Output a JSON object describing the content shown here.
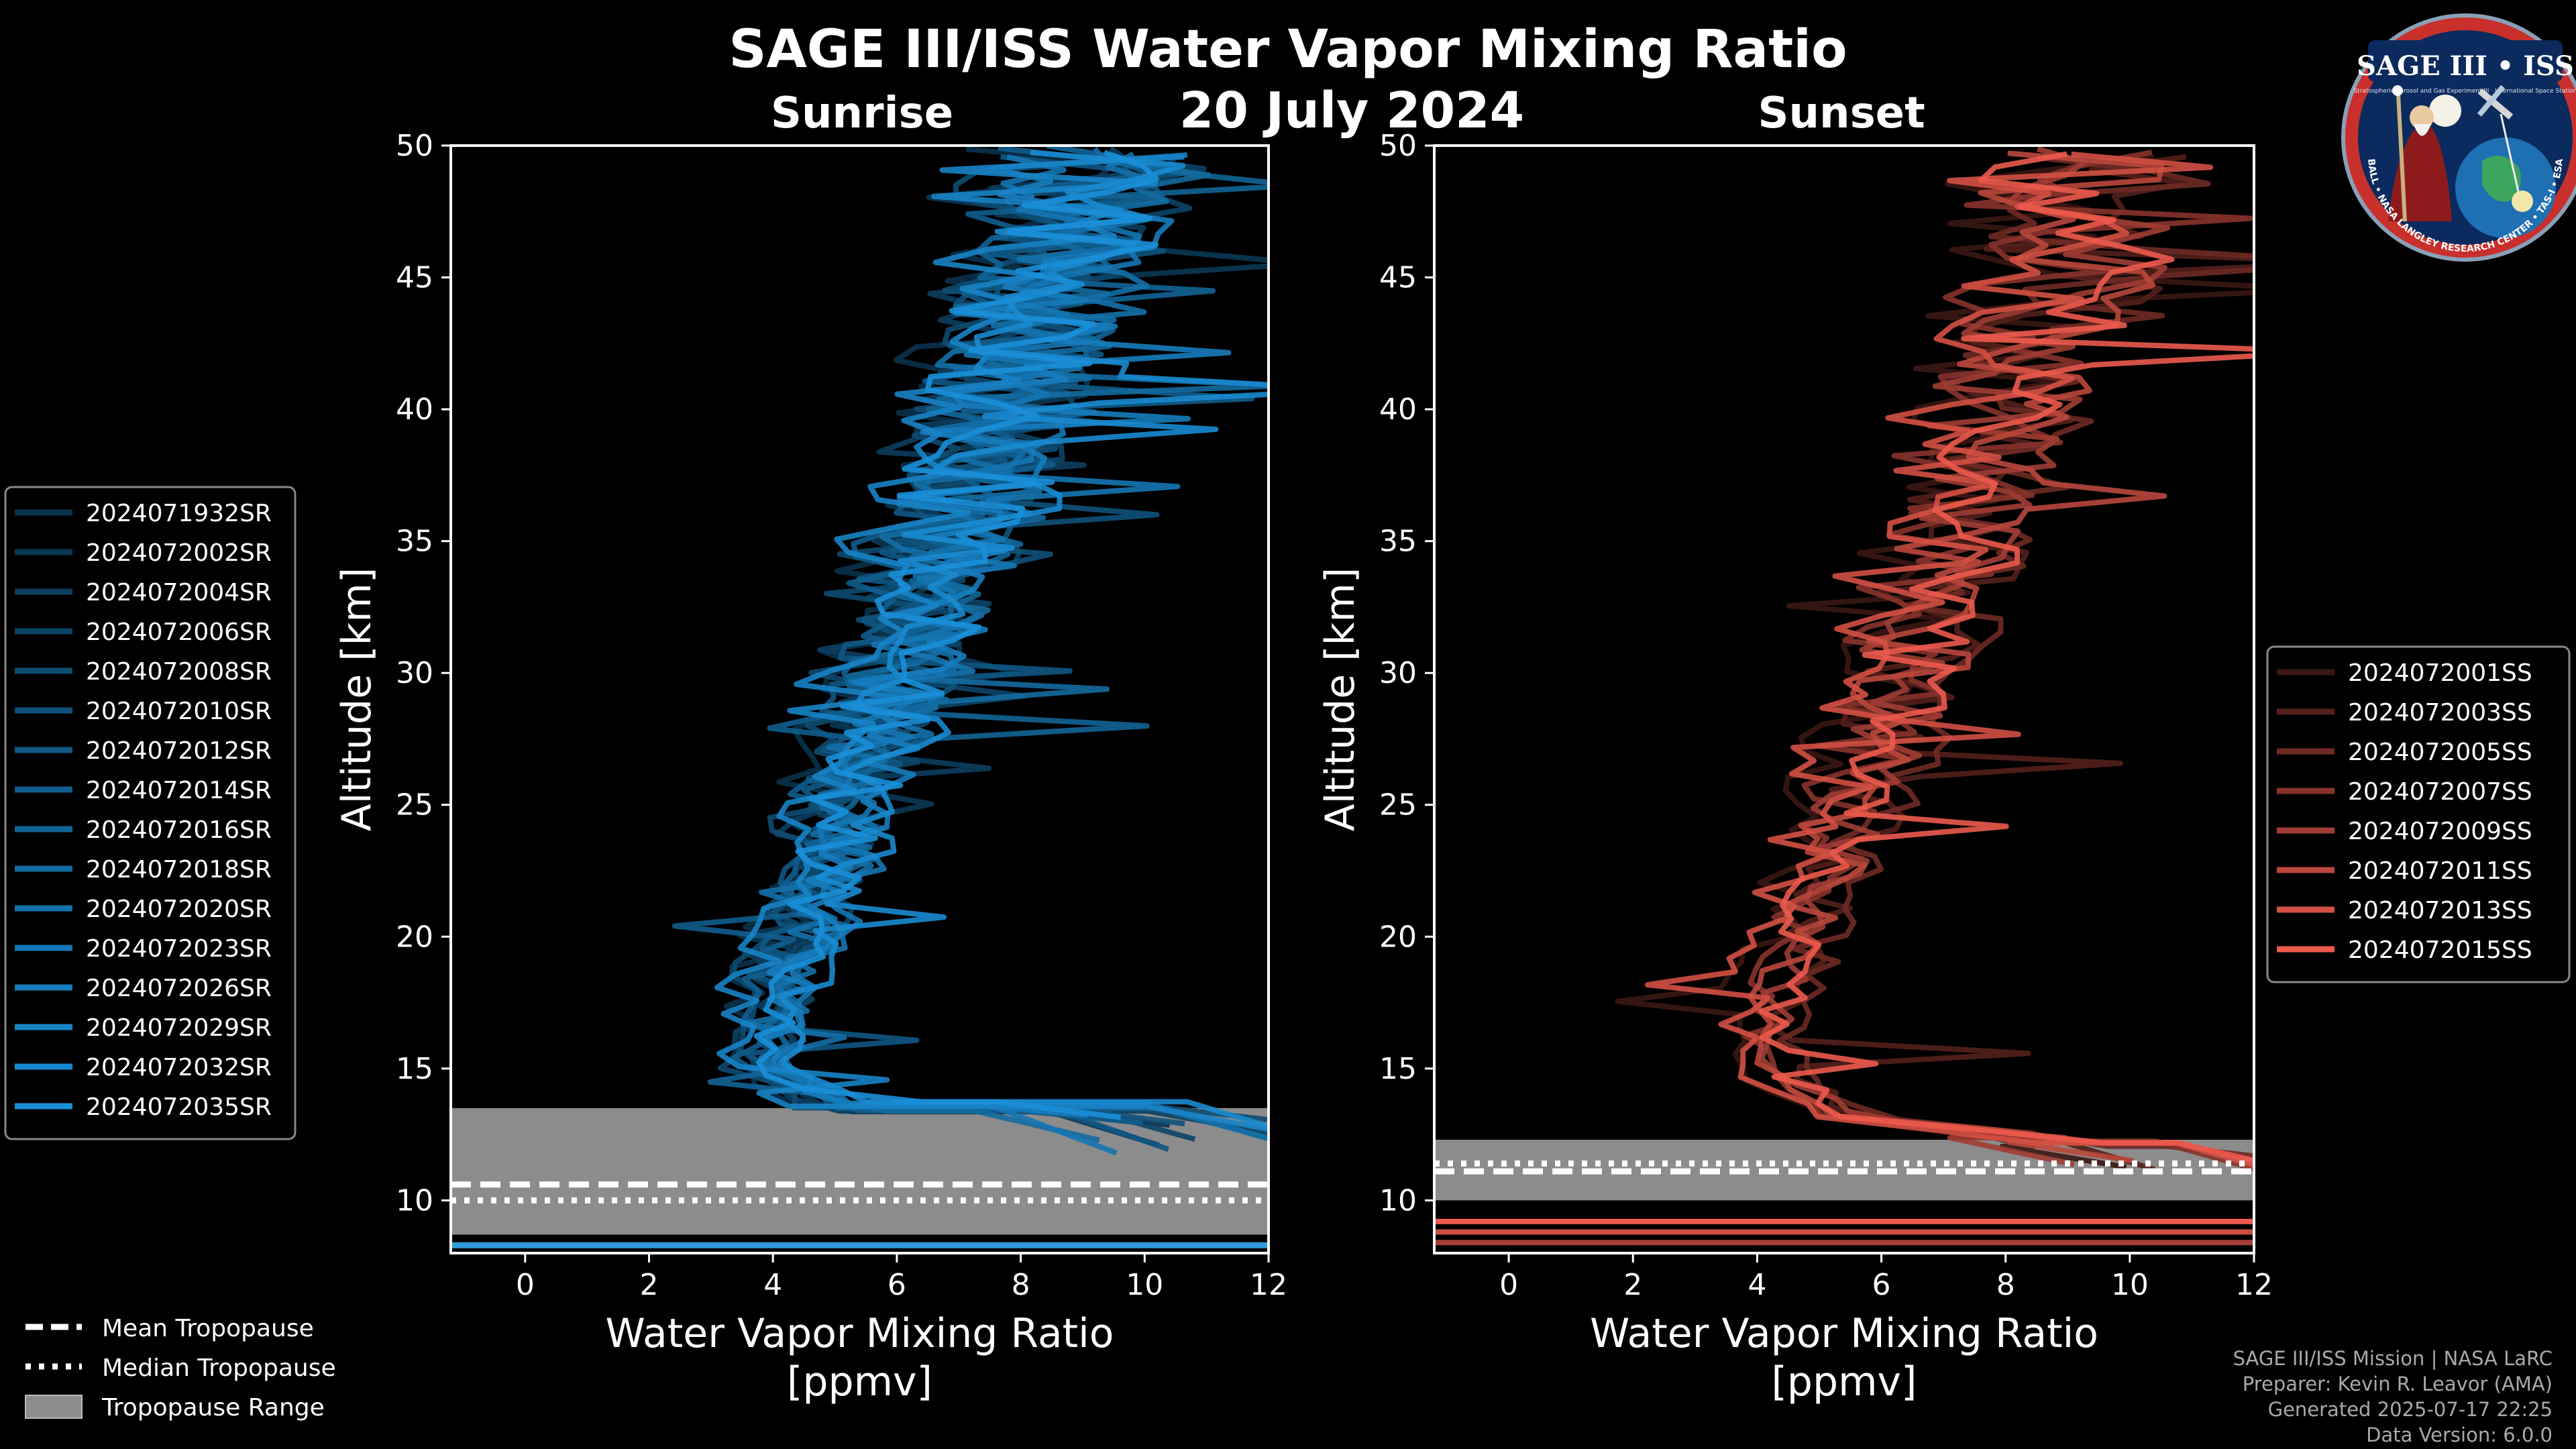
{
  "title": "SAGE III/ISS Water Vapor Mixing Ratio",
  "date": "20 July 2024",
  "colors": {
    "sunrise": "#1a8fd8",
    "sunset": "#ec5a4c",
    "tropopause_band": "#8c8c8c",
    "frame": "#ffffff"
  },
  "logo": {
    "title": "SAGE III • ISS",
    "subtitle": "Stratospheric Aerosol and Gas Experiment III · International Space Station",
    "ring_text": "BALL • NASA LANGLEY RESEARCH CENTER • TAS-I • ESA"
  },
  "tropopause_legend": [
    {
      "label": "Mean Tropopause",
      "style": "dashed"
    },
    {
      "label": "Median Tropopause",
      "style": "dotted"
    },
    {
      "label": "Tropopause Range",
      "style": "band"
    }
  ],
  "credits": [
    "SAGE III/ISS Mission | NASA LaRC",
    "Preparer: Kevin R. Leavor (AMA)",
    "Generated 2025-07-17 22:25",
    "Data Version: 6.0.0"
  ],
  "chart_data": [
    {
      "type": "line",
      "panel": "sunrise",
      "title": "Sunrise",
      "xlabel": "Water Vapor Mixing Ratio\n[ppmv]",
      "ylabel": "Altitude [km]",
      "xlim": [
        -1.2,
        12
      ],
      "ylim": [
        8,
        50
      ],
      "xticks": [
        0,
        2,
        4,
        6,
        8,
        10,
        12
      ],
      "yticks": [
        10,
        15,
        20,
        25,
        30,
        35,
        40,
        45,
        50
      ],
      "tropopause": {
        "mean_km": 10.6,
        "median_km": 10.0,
        "range_km": [
          8.7,
          13.5
        ]
      },
      "series": [
        {
          "name": "2024071932SR"
        },
        {
          "name": "2024072002SR"
        },
        {
          "name": "2024072004SR"
        },
        {
          "name": "2024072006SR"
        },
        {
          "name": "2024072008SR"
        },
        {
          "name": "2024072010SR"
        },
        {
          "name": "2024072012SR"
        },
        {
          "name": "2024072014SR"
        },
        {
          "name": "2024072016SR"
        },
        {
          "name": "2024072018SR"
        },
        {
          "name": "2024072020SR"
        },
        {
          "name": "2024072023SR"
        },
        {
          "name": "2024072026SR"
        },
        {
          "name": "2024072029SR"
        },
        {
          "name": "2024072032SR"
        },
        {
          "name": "2024072035SR"
        }
      ],
      "profile_model": {
        "min_ppmv_km": 15.5,
        "min_ppmv": 3.6,
        "median_profile": [
          [
            12.5,
            8.5
          ],
          [
            13.5,
            5.0
          ],
          [
            15,
            3.7
          ],
          [
            18,
            3.9
          ],
          [
            20,
            4.3
          ],
          [
            25,
            5.0
          ],
          [
            30,
            5.8
          ],
          [
            35,
            6.6
          ],
          [
            40,
            7.5
          ],
          [
            45,
            8.3
          ],
          [
            50,
            9.0
          ]
        ]
      }
    },
    {
      "type": "line",
      "panel": "sunset",
      "title": "Sunset",
      "xlabel": "Water Vapor Mixing Ratio\n[ppmv]",
      "ylabel": "Altitude [km]",
      "xlim": [
        -1.2,
        12
      ],
      "ylim": [
        8,
        50
      ],
      "xticks": [
        0,
        2,
        4,
        6,
        8,
        10,
        12
      ],
      "yticks": [
        10,
        15,
        20,
        25,
        30,
        35,
        40,
        45,
        50
      ],
      "tropopause": {
        "mean_km": 11.1,
        "median_km": 11.4,
        "range_km": [
          10.0,
          12.3
        ]
      },
      "series": [
        {
          "name": "2024072001SS"
        },
        {
          "name": "2024072003SS"
        },
        {
          "name": "2024072005SS"
        },
        {
          "name": "2024072007SS"
        },
        {
          "name": "2024072009SS"
        },
        {
          "name": "2024072011SS"
        },
        {
          "name": "2024072013SS"
        },
        {
          "name": "2024072015SS"
        }
      ],
      "profile_model": {
        "min_ppmv_km": 16,
        "min_ppmv": 3.8,
        "median_profile": [
          [
            12.3,
            9.0
          ],
          [
            13.2,
            5.2
          ],
          [
            15,
            4.0
          ],
          [
            18,
            4.1
          ],
          [
            20,
            4.5
          ],
          [
            25,
            5.3
          ],
          [
            30,
            6.2
          ],
          [
            35,
            6.9
          ],
          [
            40,
            7.8
          ],
          [
            45,
            8.6
          ],
          [
            50,
            9.2
          ]
        ]
      }
    }
  ]
}
